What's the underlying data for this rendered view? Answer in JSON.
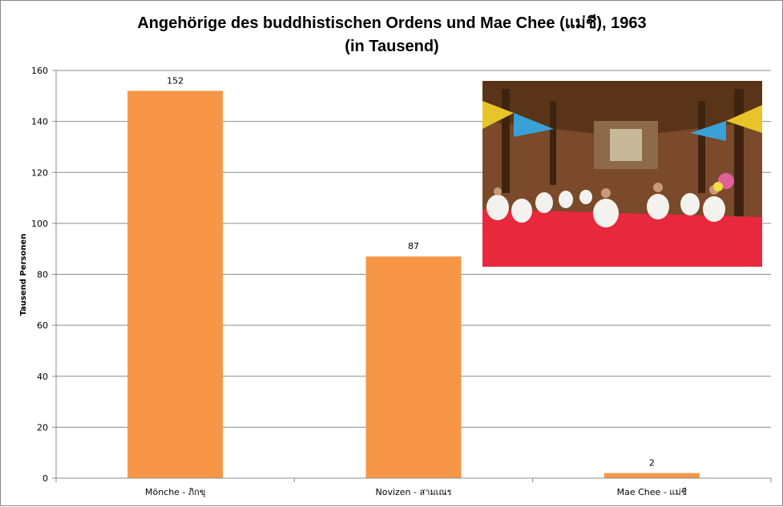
{
  "chart_data": {
    "type": "bar",
    "title": "Angehörige des buddhistischen Ordens und Mae Chee (แม่ชี), 1963",
    "subtitle": "(in Tausend)",
    "ylabel": "Tausend Personen",
    "xlabel": "",
    "categories": [
      "Mönche - ภิกขุ",
      "Novizen - สามเณร",
      "Mae Chee - แม่ชี"
    ],
    "values": [
      152,
      87,
      2
    ],
    "data_labels": [
      "152",
      "87",
      "2"
    ],
    "ylim": [
      0,
      160
    ],
    "yticks": [
      0,
      20,
      40,
      60,
      80,
      100,
      120,
      140,
      160
    ],
    "grid": true,
    "legend": "none",
    "bar_color": "#F79646"
  }
}
